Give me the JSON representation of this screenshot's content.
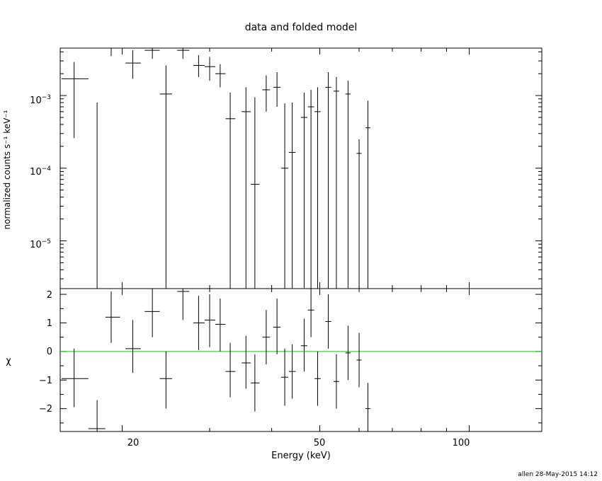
{
  "chart_data": [
    {
      "type": "scatter",
      "title": "data and folded model",
      "ylabel": "normalized counts s⁻¹ keV⁻¹",
      "xlabel": "",
      "xscale": "log",
      "yscale": "log",
      "xlim": [
        15,
        140
      ],
      "ylim": [
        2.2e-06,
        0.0045
      ],
      "ytick_labels": [
        {
          "base": "10",
          "exp": "−3"
        },
        {
          "base": "10",
          "exp": "−4"
        },
        {
          "base": "10",
          "exp": "−5"
        }
      ],
      "data": [
        {
          "x": 16.0,
          "xerr": [
            15.1,
            17.1
          ],
          "y": 0.0017,
          "ylo": 0.00026,
          "yhi": 0.0029
        },
        {
          "x": 17.8,
          "xerr": [
            17.1,
            18.5
          ],
          "y": 2.2e-06,
          "ylo": 2.2e-06,
          "yhi": 0.0008
        },
        {
          "x": 19.0,
          "xerr": [
            18.5,
            19.8
          ],
          "y": 0.0045,
          "ylo": 0.0035,
          "yhi": 0.0045
        },
        {
          "x": 21.0,
          "xerr": [
            20.3,
            21.8
          ],
          "y": 0.0028,
          "ylo": 0.0017,
          "yhi": 0.0042
        },
        {
          "x": 23.0,
          "xerr": [
            22.2,
            23.8
          ],
          "y": 0.0042,
          "ylo": 0.0032,
          "yhi": 0.0045
        },
        {
          "x": 24.5,
          "xerr": [
            23.8,
            25.2
          ],
          "y": 0.00105,
          "ylo": 2.2e-06,
          "yhi": 0.0026
        },
        {
          "x": 26.5,
          "xerr": [
            25.8,
            27.3
          ],
          "y": 0.0042,
          "ylo": 0.0032,
          "yhi": 0.0045
        },
        {
          "x": 28.5,
          "xerr": [
            27.8,
            29.3
          ],
          "y": 0.0026,
          "ylo": 0.0018,
          "yhi": 0.0036
        },
        {
          "x": 30.0,
          "xerr": [
            29.3,
            30.8
          ],
          "y": 0.0025,
          "ylo": 0.0016,
          "yhi": 0.0034
        },
        {
          "x": 31.5,
          "xerr": [
            30.8,
            32.3
          ],
          "y": 0.002,
          "ylo": 0.0013,
          "yhi": 0.0027
        },
        {
          "x": 33.0,
          "xerr": [
            32.3,
            33.8
          ],
          "y": 0.00048,
          "ylo": 2.2e-06,
          "yhi": 0.0011
        },
        {
          "x": 35.5,
          "xerr": [
            34.8,
            36.3
          ],
          "y": 0.0006,
          "ylo": 2.2e-06,
          "yhi": 0.0013
        },
        {
          "x": 37.0,
          "xerr": [
            36.3,
            37.8
          ],
          "y": 6e-05,
          "ylo": 2.2e-06,
          "yhi": 0.00095
        },
        {
          "x": 39.0,
          "xerr": [
            38.3,
            39.7
          ],
          "y": 0.0012,
          "ylo": 0.0006,
          "yhi": 0.0019
        },
        {
          "x": 41.0,
          "xerr": [
            40.3,
            41.7
          ],
          "y": 0.0013,
          "ylo": 0.0007,
          "yhi": 0.0021
        },
        {
          "x": 42.5,
          "xerr": [
            41.8,
            43.2
          ],
          "y": 0.0001,
          "ylo": 2.2e-06,
          "yhi": 0.00078
        },
        {
          "x": 44.0,
          "xerr": [
            43.3,
            44.7
          ],
          "y": 0.000165,
          "ylo": 2.2e-06,
          "yhi": 0.0008
        },
        {
          "x": 46.5,
          "xerr": [
            45.8,
            47.2
          ],
          "y": 0.0005,
          "ylo": 2.2e-06,
          "yhi": 0.0011
        },
        {
          "x": 48.0,
          "xerr": [
            47.3,
            48.7
          ],
          "y": 0.0007,
          "ylo": 2.2e-06,
          "yhi": 0.0012
        },
        {
          "x": 49.5,
          "xerr": [
            48.8,
            50.2
          ],
          "y": 0.0006,
          "ylo": 2.2e-06,
          "yhi": 0.0013
        },
        {
          "x": 52.0,
          "xerr": [
            51.3,
            52.7
          ],
          "y": 0.0013,
          "ylo": 2.2e-06,
          "yhi": 0.0021
        },
        {
          "x": 54.0,
          "xerr": [
            53.3,
            54.7
          ],
          "y": 0.00115,
          "ylo": 2.2e-06,
          "yhi": 0.0018
        },
        {
          "x": 57.0,
          "xerr": [
            56.3,
            57.7
          ],
          "y": 0.00105,
          "ylo": 2.2e-06,
          "yhi": 0.0016
        },
        {
          "x": 60.0,
          "xerr": [
            59.3,
            60.7
          ],
          "y": 0.00016,
          "ylo": 2.2e-06,
          "yhi": 0.00025
        },
        {
          "x": 62.5,
          "xerr": [
            61.8,
            63.2
          ],
          "y": 0.00036,
          "ylo": 2.2e-06,
          "yhi": 0.00085
        }
      ]
    },
    {
      "type": "scatter",
      "xlabel": "Energy (keV)",
      "ylabel": "χ",
      "xscale": "log",
      "xlim": [
        15,
        140
      ],
      "ylim": [
        -2.8,
        2.2
      ],
      "ytick_labels": [
        "2",
        "1",
        "0",
        "−1",
        "−2"
      ],
      "xtick_labels": [
        "20",
        "50",
        "100"
      ],
      "zero_line_color": "#00cc00",
      "data": [
        {
          "x": 16.0,
          "xerr": [
            15.1,
            17.1
          ],
          "y": -0.95,
          "ylo": -1.95,
          "yhi": 0.1
        },
        {
          "x": 17.8,
          "xerr": [
            17.1,
            18.5
          ],
          "y": -2.7,
          "ylo": -2.8,
          "yhi": -1.7
        },
        {
          "x": 19.0,
          "xerr": [
            18.5,
            19.8
          ],
          "y": 1.2,
          "ylo": 0.3,
          "yhi": 2.1
        },
        {
          "x": 21.0,
          "xerr": [
            20.3,
            21.8
          ],
          "y": 0.1,
          "ylo": -0.75,
          "yhi": 1.1
        },
        {
          "x": 23.0,
          "xerr": [
            22.2,
            23.8
          ],
          "y": 1.4,
          "ylo": 0.5,
          "yhi": 2.2
        },
        {
          "x": 24.5,
          "xerr": [
            23.8,
            25.2
          ],
          "y": -0.95,
          "ylo": -2.0,
          "yhi": 0.0
        },
        {
          "x": 26.5,
          "xerr": [
            25.8,
            27.3
          ],
          "y": 2.1,
          "ylo": 1.1,
          "yhi": 2.2
        },
        {
          "x": 28.5,
          "xerr": [
            27.8,
            29.3
          ],
          "y": 1.0,
          "ylo": 0.05,
          "yhi": 1.95
        },
        {
          "x": 30.0,
          "xerr": [
            29.3,
            30.8
          ],
          "y": 1.1,
          "ylo": 0.15,
          "yhi": 2.0
        },
        {
          "x": 31.5,
          "xerr": [
            30.8,
            32.3
          ],
          "y": 0.95,
          "ylo": 0.0,
          "yhi": 1.85
        },
        {
          "x": 33.0,
          "xerr": [
            32.3,
            33.8
          ],
          "y": -0.7,
          "ylo": -1.6,
          "yhi": 0.3
        },
        {
          "x": 35.5,
          "xerr": [
            34.8,
            36.3
          ],
          "y": -0.4,
          "ylo": -1.3,
          "yhi": 0.55
        },
        {
          "x": 37.0,
          "xerr": [
            36.3,
            37.8
          ],
          "y": -1.1,
          "ylo": -2.1,
          "yhi": -0.1
        },
        {
          "x": 39.0,
          "xerr": [
            38.3,
            39.7
          ],
          "y": 0.5,
          "ylo": -0.45,
          "yhi": 1.45
        },
        {
          "x": 41.0,
          "xerr": [
            40.3,
            41.7
          ],
          "y": 0.85,
          "ylo": -0.1,
          "yhi": 1.85
        },
        {
          "x": 42.5,
          "xerr": [
            41.8,
            43.2
          ],
          "y": -0.9,
          "ylo": -1.9,
          "yhi": 0.1
        },
        {
          "x": 44.0,
          "xerr": [
            43.3,
            44.7
          ],
          "y": -0.7,
          "ylo": -1.65,
          "yhi": 0.25
        },
        {
          "x": 46.5,
          "xerr": [
            45.8,
            47.2
          ],
          "y": 0.2,
          "ylo": -0.7,
          "yhi": 1.15
        },
        {
          "x": 48.0,
          "xerr": [
            47.3,
            48.7
          ],
          "y": 1.45,
          "ylo": 0.5,
          "yhi": 2.2
        },
        {
          "x": 49.5,
          "xerr": [
            48.8,
            50.2
          ],
          "y": -0.95,
          "ylo": -1.9,
          "yhi": 0.0
        },
        {
          "x": 52.0,
          "xerr": [
            51.3,
            52.7
          ],
          "y": 1.05,
          "ylo": 0.1,
          "yhi": 2.0
        },
        {
          "x": 54.0,
          "xerr": [
            53.3,
            54.7
          ],
          "y": -1.05,
          "ylo": -2.0,
          "yhi": -0.1
        },
        {
          "x": 57.0,
          "xerr": [
            56.3,
            57.7
          ],
          "y": -0.05,
          "ylo": -1.0,
          "yhi": 0.9
        },
        {
          "x": 60.0,
          "xerr": [
            59.3,
            60.7
          ],
          "y": -0.3,
          "ylo": -1.25,
          "yhi": 0.65
        },
        {
          "x": 62.5,
          "xerr": [
            61.8,
            63.2
          ],
          "y": -2.0,
          "ylo": -2.8,
          "yhi": -1.1
        }
      ]
    }
  ],
  "footer": {
    "stamp": "allen 28-May-2015 14:12"
  }
}
